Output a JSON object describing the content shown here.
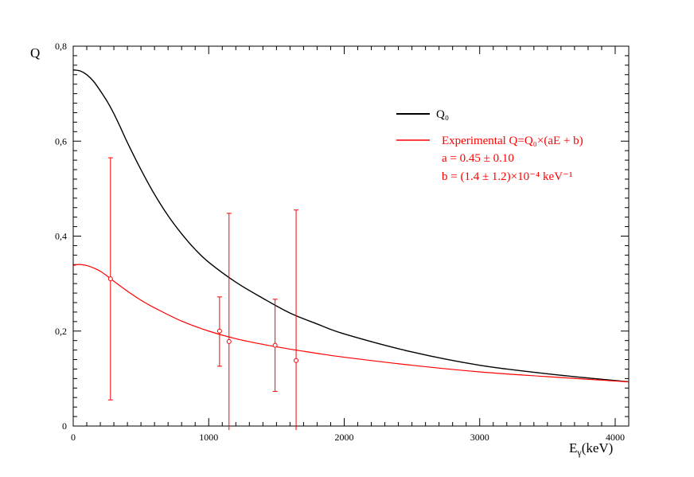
{
  "chart_data": {
    "type": "line",
    "title": "",
    "ylabel": "Q",
    "xlabel": {
      "base": "E",
      "sub": "γ",
      "unit": "(keV)"
    },
    "xlim": [
      0,
      4100
    ],
    "ylim": [
      0,
      0.8
    ],
    "x_ticks": [
      {
        "value": 0,
        "label": "0"
      },
      {
        "value": 1000,
        "label": "1000"
      },
      {
        "value": 2000,
        "label": "2000"
      },
      {
        "value": 3000,
        "label": "3000"
      },
      {
        "value": 4000,
        "label": "4000"
      }
    ],
    "y_ticks": [
      {
        "value": 0,
        "label": "0"
      },
      {
        "value": 0.2,
        "label": "0,2"
      },
      {
        "value": 0.4,
        "label": "0,4"
      },
      {
        "value": 0.6,
        "label": "0,6"
      },
      {
        "value": 0.8,
        "label": "0,8"
      }
    ],
    "grid": false,
    "legend_position": "top-right",
    "series": [
      {
        "name": "Q₀",
        "color": "#000000",
        "x": [
          0,
          50,
          100,
          150,
          200,
          250,
          300,
          350,
          400,
          500,
          600,
          700,
          800,
          900,
          1000,
          1200,
          1400,
          1600,
          1800,
          2000,
          2500,
          3000,
          3500,
          4100
        ],
        "y": [
          0.75,
          0.748,
          0.74,
          0.726,
          0.706,
          0.684,
          0.658,
          0.628,
          0.597,
          0.54,
          0.488,
          0.443,
          0.405,
          0.372,
          0.345,
          0.303,
          0.269,
          0.238,
          0.215,
          0.194,
          0.156,
          0.128,
          0.11,
          0.093
        ]
      },
      {
        "name": "Experimental Q=Q₀×(aE + b)",
        "color": "#ff0000",
        "x": [
          0,
          30,
          60,
          100,
          150,
          200,
          250,
          300,
          400,
          500,
          600,
          800,
          1000,
          1200,
          1400,
          1600,
          1800,
          2000,
          2500,
          3000,
          3500,
          4100
        ],
        "y": [
          0.338,
          0.34,
          0.34,
          0.338,
          0.333,
          0.326,
          0.316,
          0.305,
          0.284,
          0.265,
          0.249,
          0.221,
          0.2,
          0.184,
          0.172,
          0.162,
          0.153,
          0.145,
          0.128,
          0.114,
          0.104,
          0.093
        ]
      }
    ],
    "error_points": {
      "color": "#ff0000",
      "points": [
        {
          "x": 275,
          "y": 0.31,
          "ylo": 0.055,
          "yhi": 0.565
        },
        {
          "x": 1080,
          "y": 0.2,
          "ylo": 0.126,
          "yhi": 0.272
        },
        {
          "x": 1150,
          "y": 0.178,
          "ylo": -0.01,
          "yhi": 0.448
        },
        {
          "x": 1490,
          "y": 0.17,
          "ylo": 0.073,
          "yhi": 0.267
        },
        {
          "x": 1645,
          "y": 0.138,
          "ylo": -0.01,
          "yhi": 0.455
        }
      ]
    },
    "legend": {
      "entries": [
        {
          "label": "Q₀",
          "color": "#000000"
        },
        {
          "label": "Experimental Q=Q₀×(aE + b)",
          "color": "#ff0000"
        }
      ],
      "annotations": [
        "a = 0.45 ± 0.10",
        "b = (1.4 ± 1.2)×10⁻⁴ keV⁻¹"
      ]
    }
  }
}
